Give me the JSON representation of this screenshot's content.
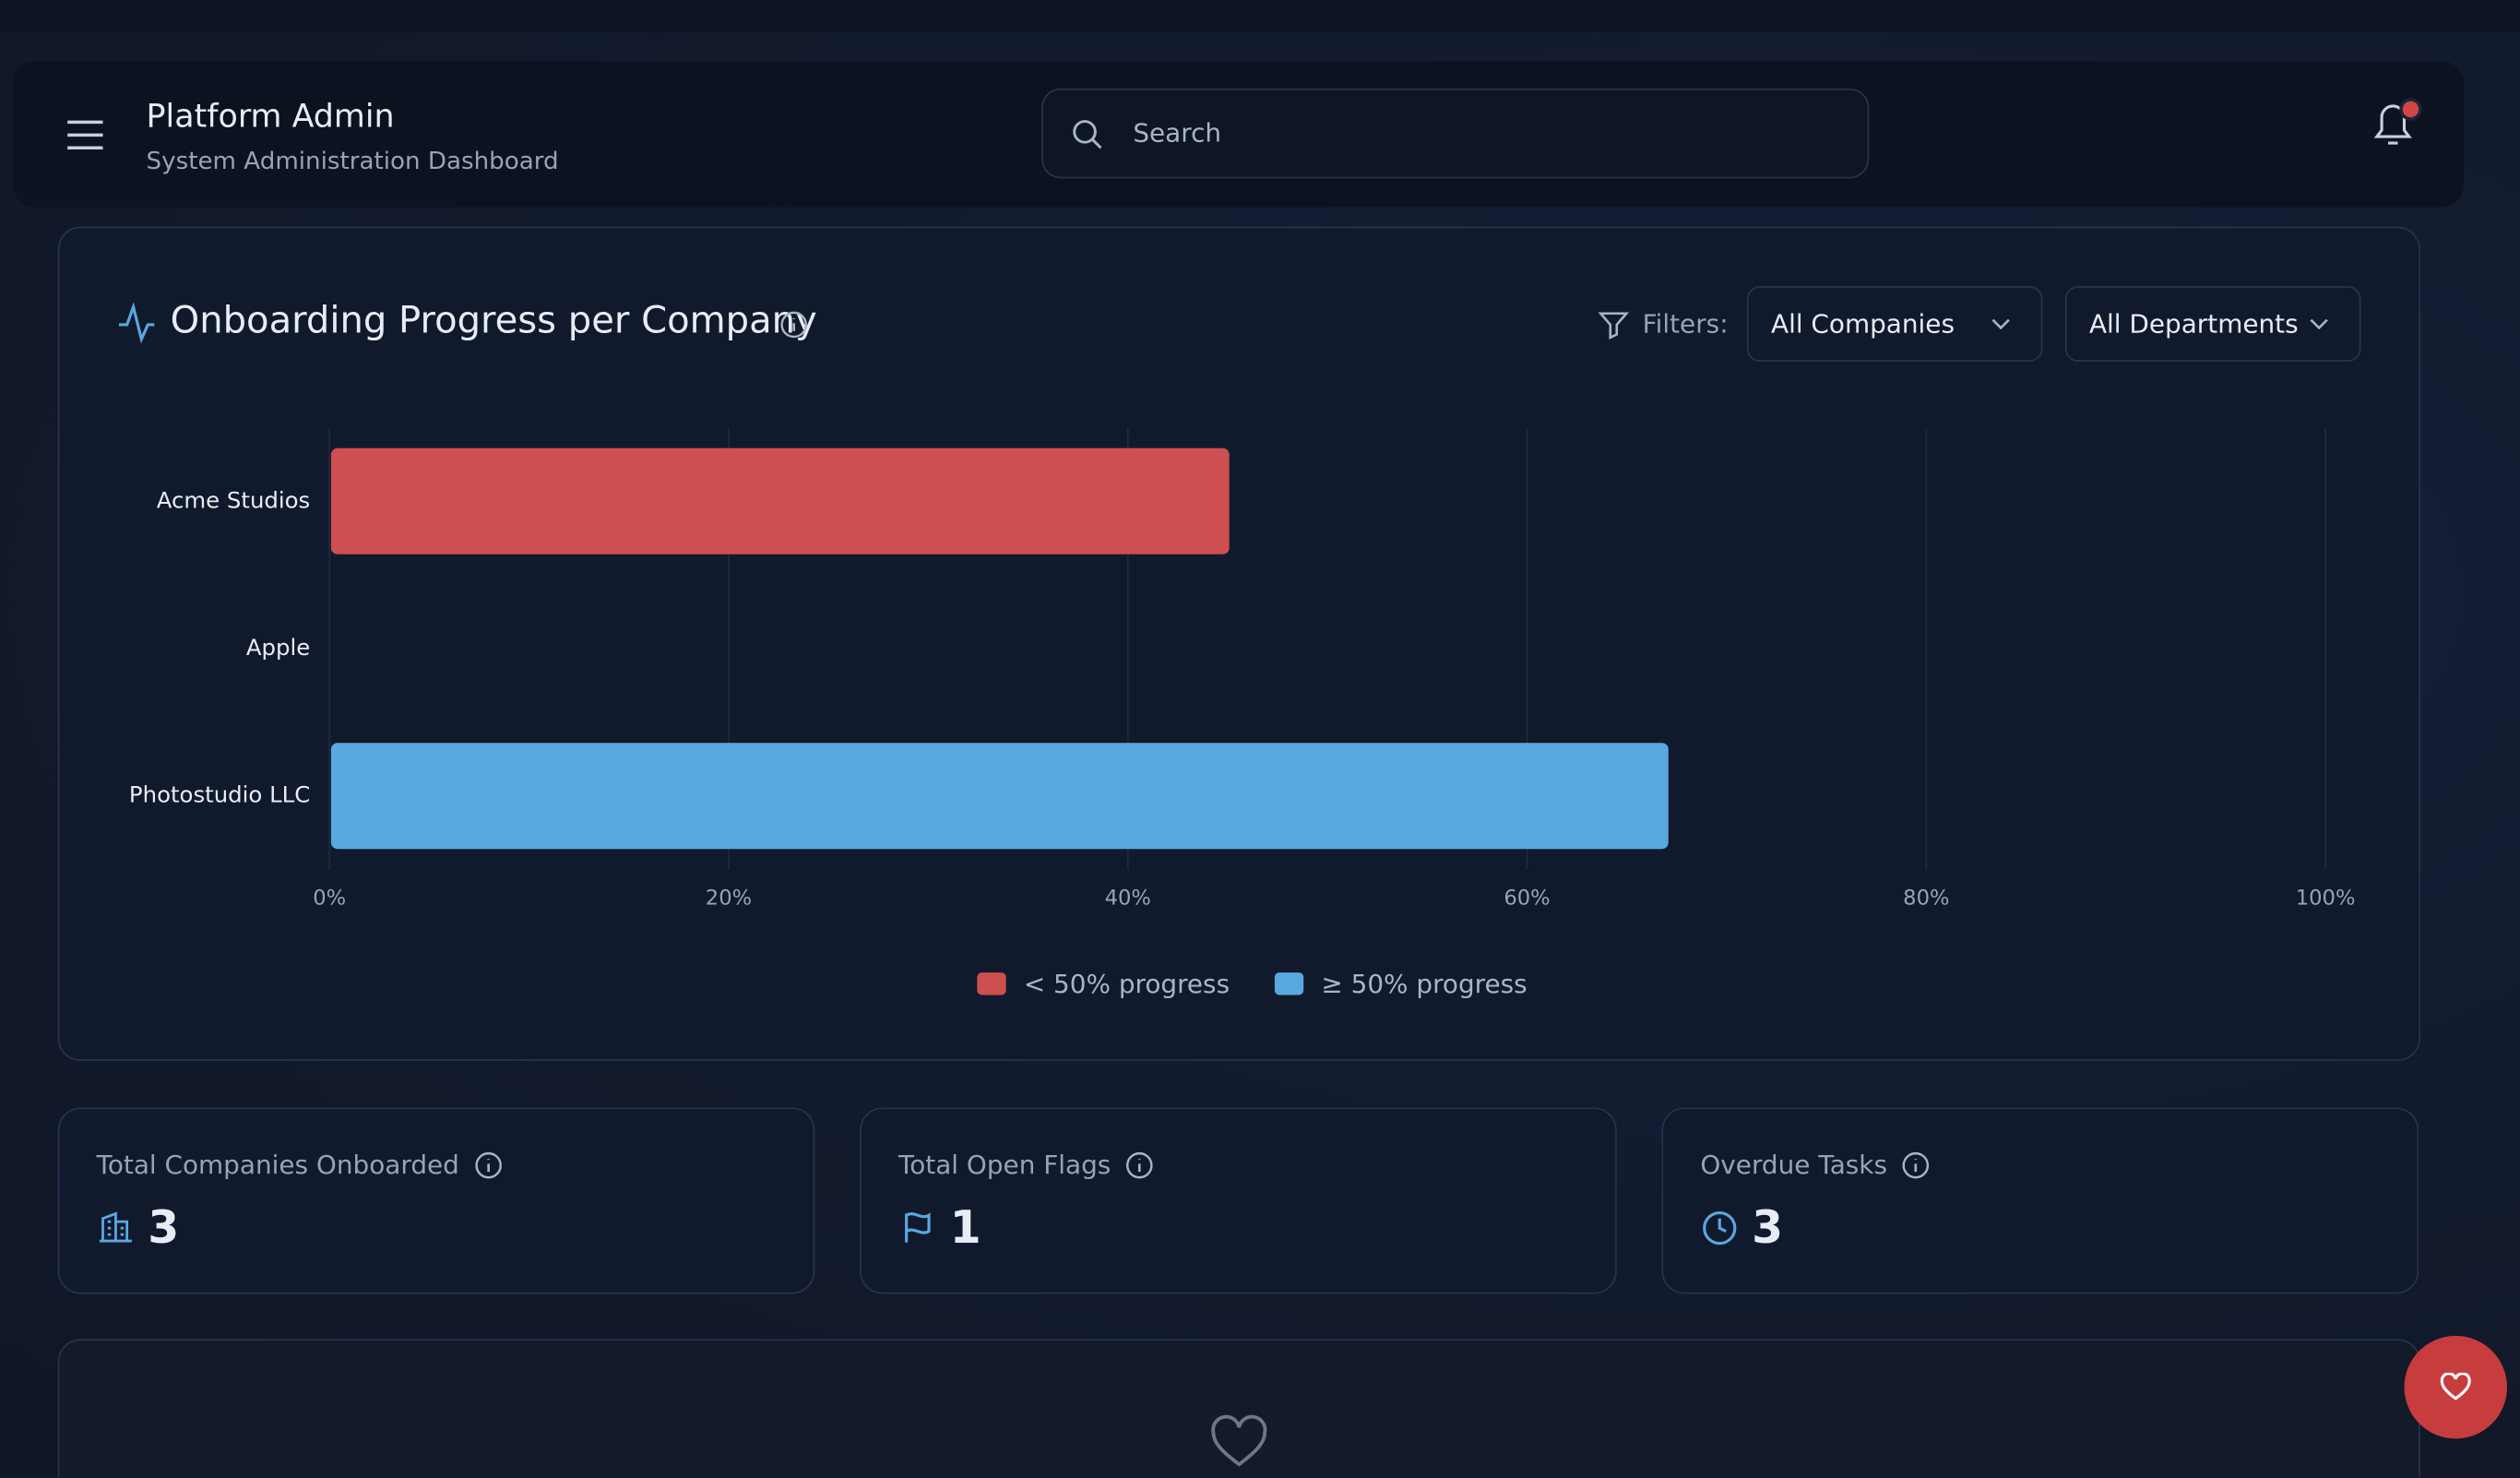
{
  "header": {
    "title": "Platform Admin",
    "subtitle": "System Administration Dashboard",
    "search_placeholder": "Search"
  },
  "filters": {
    "label": "Filters:",
    "company": "All Companies",
    "department": "All Departments"
  },
  "chart_data": {
    "type": "bar",
    "orientation": "horizontal",
    "title": "Onboarding Progress per Company",
    "categories": [
      "Acme Studios",
      "Apple",
      "Photostudio LLC"
    ],
    "values": [
      45,
      0,
      67
    ],
    "colors": [
      "#cd4f4f",
      "#cd4f4f",
      "#5aa8e0"
    ],
    "xlim": [
      0,
      100
    ],
    "xticks": [
      {
        "value": 0,
        "label": "0%"
      },
      {
        "value": 20,
        "label": "20%"
      },
      {
        "value": 40,
        "label": "40%"
      },
      {
        "value": 60,
        "label": "60%"
      },
      {
        "value": 80,
        "label": "80%"
      },
      {
        "value": 100,
        "label": "100%"
      }
    ],
    "grid": true,
    "legend": [
      {
        "label": "< 50% progress",
        "color": "#cd4f4f"
      },
      {
        "label": "≥ 50% progress",
        "color": "#5aa8e0"
      }
    ]
  },
  "stats": [
    {
      "label": "Total Companies Onboarded",
      "value": "3"
    },
    {
      "label": "Total Open Flags",
      "value": "1"
    },
    {
      "label": "Overdue Tasks",
      "value": "3"
    }
  ]
}
